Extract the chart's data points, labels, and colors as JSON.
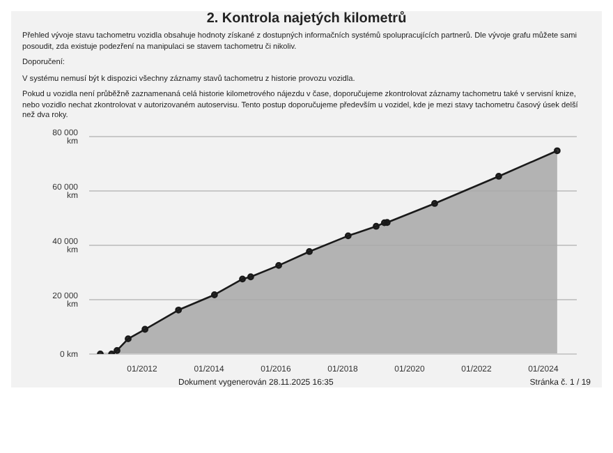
{
  "chart_data": {
    "type": "area",
    "title": "2. Kontrola najetých kilometrů",
    "annotations": [
      "Přehled vývoje stavu tachometru vozidla obsahuje hodnoty získané z dostupných informačních systémů spolupracujících partnerů. Dle vývoje grafu můžete sami posoudit, zda existuje podezření na manipulaci se stavem tachometru či nikoliv.",
      "Doporučení:",
      "V systému nemusí být k dispozici všechny záznamy stavů tachometru z historie provozu vozidla.",
      "Pokud u vozidla není průběžně zaznamenaná celá historie kilometrového nájezdu v čase, doporučujeme zkontrolovat záznamy tachometru také v servisní knize, nebo vozidlo nechat zkontrolovat v autorizovaném autoservisu. Tento postup doporučujeme především u vozidel, kde je mezi stavy tachometru časový úsek delší než dva roky.",
      "Dokument vygenerován 28.11.2025 16:35",
      "Stránka č. 1 / 19"
    ],
    "x": [
      "2010-10",
      "2011-02",
      "2011-04",
      "2011-08",
      "2012-02",
      "2013-02",
      "2014-03",
      "2015-01",
      "2015-04",
      "2016-02",
      "2017-01",
      "2018-03",
      "2019-01",
      "2019-04",
      "2019-05",
      "2020-10",
      "2022-09",
      "2024-06"
    ],
    "series": [
      {
        "color": "#1a1a1a",
        "values": [
          0,
          0,
          1300,
          5600,
          9100,
          16200,
          21800,
          27600,
          28400,
          32600,
          37700,
          43500,
          47000,
          48300,
          48400,
          55400,
          65400,
          74800
        ]
      }
    ],
    "xlim": [
      "2010-06",
      "2025-01"
    ],
    "xticks": [
      {
        "value": "2012-01",
        "label": "01/2012"
      },
      {
        "value": "2014-01",
        "label": "01/2014"
      },
      {
        "value": "2016-01",
        "label": "01/2016"
      },
      {
        "value": "2018-01",
        "label": "01/2018"
      },
      {
        "value": "2020-01",
        "label": "01/2020"
      },
      {
        "value": "2022-01",
        "label": "01/2022"
      },
      {
        "value": "2024-01",
        "label": "01/2024"
      }
    ],
    "ylim": [
      0,
      80000
    ],
    "yticks": [
      {
        "value": 0,
        "label": "0 km"
      },
      {
        "value": 20000,
        "label": "20 000 km"
      },
      {
        "value": 40000,
        "label": "40 000 km"
      },
      {
        "value": 60000,
        "label": "60 000 km"
      },
      {
        "value": 80000,
        "label": "80 000 km"
      }
    ],
    "grid": "y",
    "marker": "circle",
    "line_style": "solid"
  }
}
